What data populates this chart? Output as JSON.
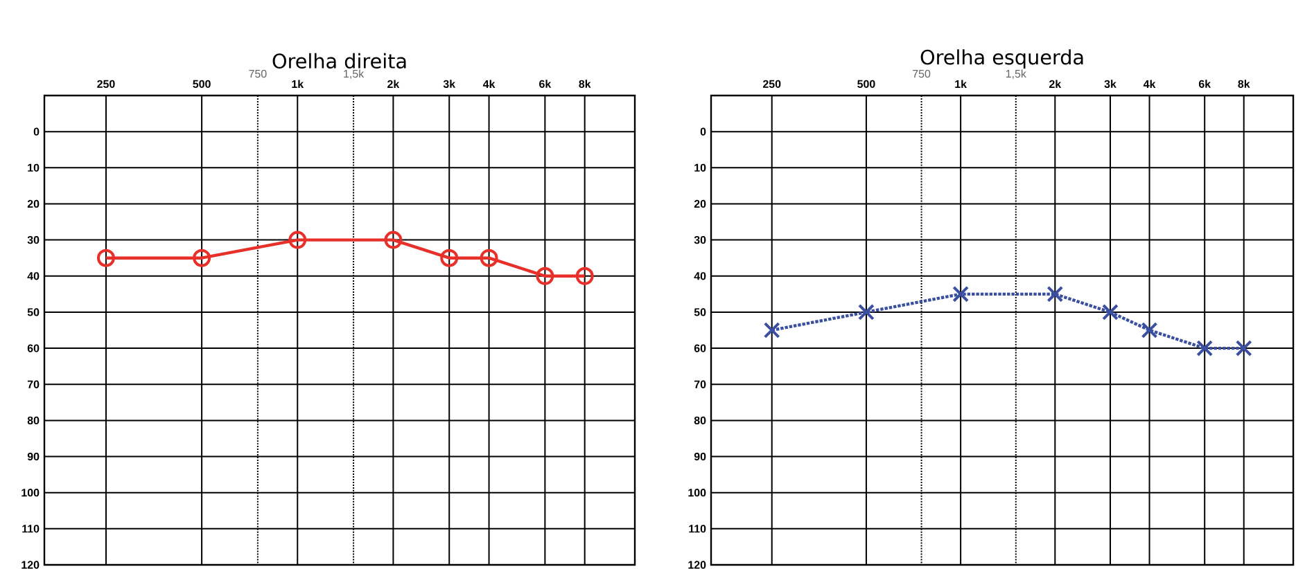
{
  "chart_data": [
    {
      "type": "line",
      "title": "Orelha direita",
      "x": [
        250,
        500,
        1000,
        2000,
        3000,
        4000,
        6000,
        8000
      ],
      "series": [
        {
          "color": "#e8302a",
          "marker": "circle",
          "line_style": "solid",
          "values": [
            35,
            35,
            30,
            30,
            35,
            35,
            40,
            40
          ]
        }
      ],
      "log": "x",
      "xlim": [
        160,
        11500
      ],
      "ylim": [
        120,
        -10
      ],
      "xticks": [
        250,
        500,
        {
          "value": 1000,
          "label": "1k"
        },
        {
          "value": 2000,
          "label": "2k"
        },
        {
          "value": 3000,
          "label": "3k"
        },
        {
          "value": 4000,
          "label": "4k"
        },
        {
          "value": 6000,
          "label": "6k"
        },
        {
          "value": 8000,
          "label": "8k"
        }
      ],
      "yticks": [
        0,
        10,
        20,
        30,
        40,
        50,
        60,
        70,
        80,
        90,
        100,
        110,
        120
      ],
      "ref_lines": [
        {
          "axis": "x",
          "value": 750,
          "label": "750",
          "line_style": "dotted"
        },
        {
          "axis": "x",
          "value": 1500,
          "label": "1,5k",
          "line_style": "dotted"
        }
      ],
      "grid": true
    },
    {
      "type": "line",
      "title": "Orelha esquerda",
      "x": [
        250,
        500,
        1000,
        2000,
        3000,
        4000,
        6000,
        8000
      ],
      "series": [
        {
          "color": "#3a4fa0",
          "marker": "cross",
          "line_style": "dotted",
          "values": [
            55,
            50,
            45,
            45,
            50,
            55,
            60,
            60
          ]
        }
      ],
      "log": "x",
      "xlim": [
        160,
        11500
      ],
      "ylim": [
        120,
        -10
      ],
      "xticks": [
        250,
        500,
        {
          "value": 1000,
          "label": "1k"
        },
        {
          "value": 2000,
          "label": "2k"
        },
        {
          "value": 3000,
          "label": "3k"
        },
        {
          "value": 4000,
          "label": "4k"
        },
        {
          "value": 6000,
          "label": "6k"
        },
        {
          "value": 8000,
          "label": "8k"
        }
      ],
      "yticks": [
        0,
        10,
        20,
        30,
        40,
        50,
        60,
        70,
        80,
        90,
        100,
        110,
        120
      ],
      "ref_lines": [
        {
          "axis": "x",
          "value": 750,
          "label": "750",
          "line_style": "dotted"
        },
        {
          "axis": "x",
          "value": 1500,
          "label": "1,5k",
          "line_style": "dotted"
        }
      ],
      "grid": true
    }
  ]
}
